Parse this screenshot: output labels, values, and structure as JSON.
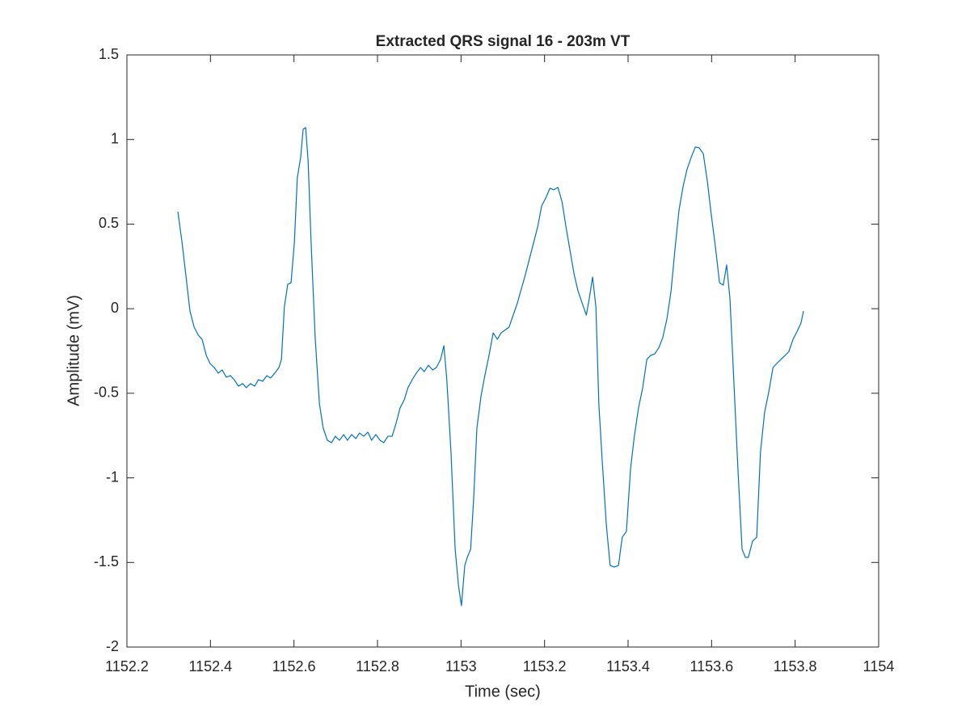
{
  "chart_data": {
    "type": "line",
    "title": "Extracted QRS signal 16 - 203m VT",
    "x_label": "Time (sec)",
    "y_label": "Amplitude (mV)",
    "xlim": [
      1152.2,
      1154
    ],
    "ylim": [
      -2,
      1.5
    ],
    "xticks": [
      1152.2,
      1152.4,
      1152.6,
      1152.8,
      1153,
      1153.2,
      1153.4,
      1153.6,
      1153.8,
      1154
    ],
    "yticks": [
      -2,
      -1.5,
      -1,
      -0.5,
      0,
      0.5,
      1,
      1.5
    ],
    "grid": false,
    "x": [
      1152.322,
      1152.332,
      1152.341,
      1152.351,
      1152.361,
      1152.371,
      1152.38,
      1152.39,
      1152.399,
      1152.409,
      1152.419,
      1152.428,
      1152.438,
      1152.448,
      1152.457,
      1152.467,
      1152.477,
      1152.486,
      1152.496,
      1152.506,
      1152.515,
      1152.525,
      1152.535,
      1152.544,
      1152.554,
      1152.564,
      1152.57,
      1152.577,
      1152.585,
      1152.593,
      1152.601,
      1152.608,
      1152.616,
      1152.622,
      1152.628,
      1152.634,
      1152.641,
      1152.651,
      1152.661,
      1152.67,
      1152.68,
      1152.69,
      1152.699,
      1152.709,
      1152.719,
      1152.728,
      1152.738,
      1152.748,
      1152.757,
      1152.767,
      1152.777,
      1152.786,
      1152.796,
      1152.806,
      1152.815,
      1152.825,
      1152.835,
      1152.844,
      1152.854,
      1152.864,
      1152.873,
      1152.883,
      1152.893,
      1152.903,
      1152.912,
      1152.922,
      1152.932,
      1152.941,
      1152.951,
      1152.959,
      1152.966,
      1152.976,
      1152.986,
      1152.994,
      1153.001,
      1153.009,
      1153.015,
      1153.023,
      1153.03,
      1153.038,
      1153.048,
      1153.057,
      1153.067,
      1153.077,
      1153.087,
      1153.096,
      1153.115,
      1153.135,
      1153.154,
      1153.174,
      1153.184,
      1153.193,
      1153.203,
      1153.213,
      1153.222,
      1153.232,
      1153.242,
      1153.251,
      1153.261,
      1153.271,
      1153.28,
      1153.29,
      1153.3,
      1153.307,
      1153.315,
      1153.323,
      1153.33,
      1153.338,
      1153.348,
      1153.357,
      1153.367,
      1153.377,
      1153.386,
      1153.396,
      1153.406,
      1153.415,
      1153.425,
      1153.435,
      1153.445,
      1153.454,
      1153.464,
      1153.474,
      1153.483,
      1153.493,
      1153.503,
      1153.512,
      1153.522,
      1153.532,
      1153.541,
      1153.551,
      1153.561,
      1153.57,
      1153.58,
      1153.59,
      1153.599,
      1153.609,
      1153.619,
      1153.628,
      1153.636,
      1153.644,
      1153.654,
      1153.663,
      1153.673,
      1153.681,
      1153.688,
      1153.698,
      1153.708,
      1153.717,
      1153.727,
      1153.737,
      1153.747,
      1153.756,
      1153.766,
      1153.776,
      1153.785,
      1153.795,
      1153.805,
      1153.814,
      1153.82
    ],
    "series": [
      {
        "color": "#0072bd",
        "values": [
          0.574,
          0.392,
          0.201,
          -0.014,
          -0.109,
          -0.157,
          -0.181,
          -0.276,
          -0.324,
          -0.348,
          -0.381,
          -0.362,
          -0.405,
          -0.396,
          -0.42,
          -0.458,
          -0.443,
          -0.467,
          -0.443,
          -0.458,
          -0.42,
          -0.429,
          -0.396,
          -0.41,
          -0.381,
          -0.348,
          -0.3,
          0.01,
          0.144,
          0.153,
          0.392,
          0.774,
          0.894,
          1.061,
          1.07,
          0.87,
          0.392,
          -0.181,
          -0.563,
          -0.706,
          -0.778,
          -0.792,
          -0.754,
          -0.778,
          -0.744,
          -0.778,
          -0.744,
          -0.768,
          -0.735,
          -0.754,
          -0.73,
          -0.778,
          -0.744,
          -0.778,
          -0.792,
          -0.754,
          -0.754,
          -0.682,
          -0.587,
          -0.539,
          -0.467,
          -0.42,
          -0.381,
          -0.348,
          -0.372,
          -0.334,
          -0.362,
          -0.348,
          -0.3,
          -0.219,
          -0.42,
          -0.849,
          -1.422,
          -1.637,
          -1.756,
          -1.518,
          -1.47,
          -1.422,
          -1.136,
          -0.706,
          -0.515,
          -0.396,
          -0.276,
          -0.143,
          -0.181,
          -0.143,
          -0.109,
          0.034,
          0.201,
          0.392,
          0.488,
          0.607,
          0.655,
          0.712,
          0.703,
          0.717,
          0.631,
          0.488,
          0.344,
          0.201,
          0.106,
          0.034,
          -0.038,
          0.058,
          0.187,
          0.01,
          -0.563,
          -0.897,
          -1.279,
          -1.518,
          -1.527,
          -1.518,
          -1.351,
          -1.317,
          -0.945,
          -0.754,
          -0.587,
          -0.467,
          -0.3,
          -0.276,
          -0.267,
          -0.229,
          -0.171,
          -0.061,
          0.106,
          0.344,
          0.583,
          0.726,
          0.822,
          0.894,
          0.956,
          0.951,
          0.917,
          0.75,
          0.559,
          0.368,
          0.153,
          0.139,
          0.259,
          0.058,
          -0.467,
          -0.945,
          -1.422,
          -1.47,
          -1.47,
          -1.374,
          -1.351,
          -0.849,
          -0.611,
          -0.491,
          -0.348,
          -0.324,
          -0.3,
          -0.276,
          -0.253,
          -0.181,
          -0.133,
          -0.085,
          -0.014
        ]
      }
    ]
  }
}
